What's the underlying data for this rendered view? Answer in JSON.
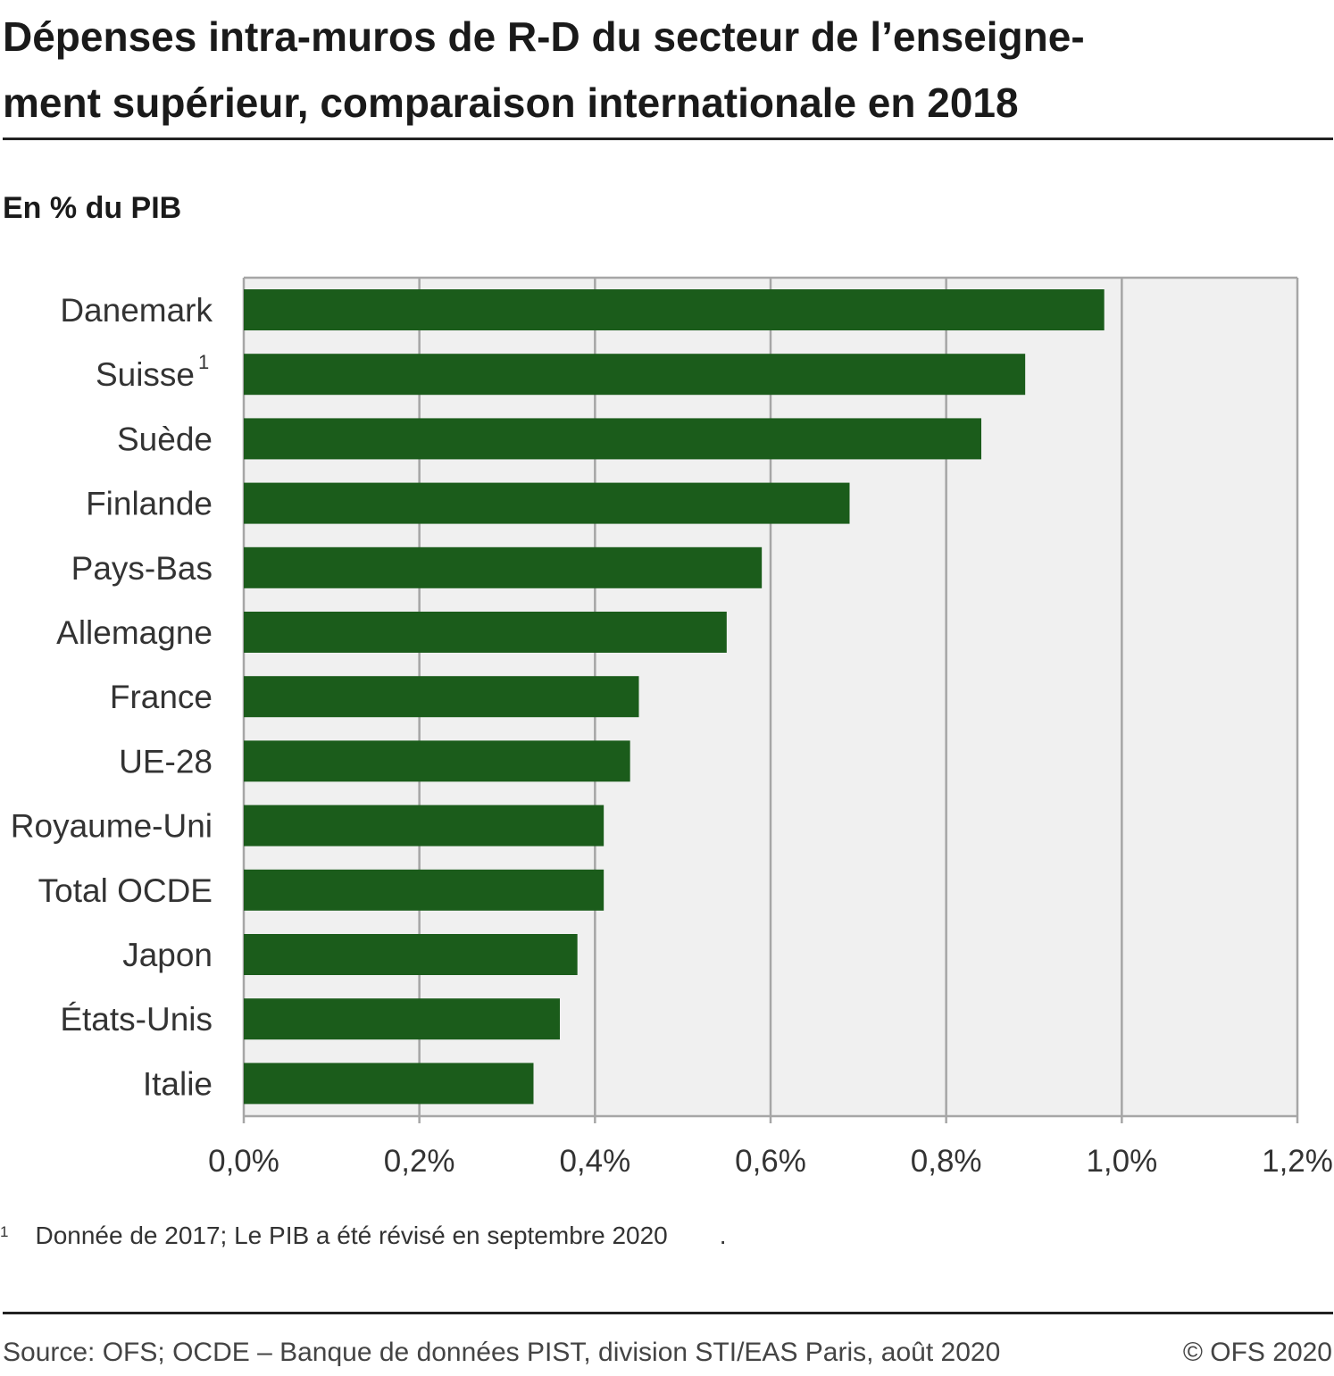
{
  "title_lines": [
    "Dépenses intra-muros de R-D du secteur de l’enseigne-",
    "ment supérieur, comparaison internationale en 2018"
  ],
  "unit_label": "En % du PIB",
  "chart_data": {
    "type": "bar",
    "orientation": "horizontal",
    "categories": [
      "Danemark",
      "Suisse",
      "Suède",
      "Finlande",
      "Pays-Bas",
      "Allemagne",
      "France",
      "UE-28",
      "Royaume-Uni",
      "Total OCDE",
      "Japon",
      "États-Unis",
      "Italie"
    ],
    "category_footnotes": {
      "Suisse": "1"
    },
    "values": [
      0.98,
      0.89,
      0.84,
      0.69,
      0.59,
      0.55,
      0.45,
      0.44,
      0.41,
      0.41,
      0.38,
      0.36,
      0.33
    ],
    "xlim": [
      0,
      1.2
    ],
    "xticks": [
      0,
      0.2,
      0.4,
      0.6,
      0.8,
      1.0,
      1.2
    ],
    "xtick_labels": [
      "0,0%",
      "0,2%",
      "0,4%",
      "0,6%",
      "0,8%",
      "1,0%",
      "1,2%"
    ],
    "grid": "vertical",
    "bar_color": "#1b5c1b",
    "plot_background": "#f0f0f0",
    "grid_color": "#a6a6a6"
  },
  "footnote": {
    "marker": "1",
    "text": "Donnée de 2017; Le PIB a été révisé en septembre 2020",
    "trailing": "."
  },
  "source": "Source: OFS; OCDE – Banque de données PIST, division STI/EAS Paris, août 2020",
  "copyright": "© OFS 2020"
}
